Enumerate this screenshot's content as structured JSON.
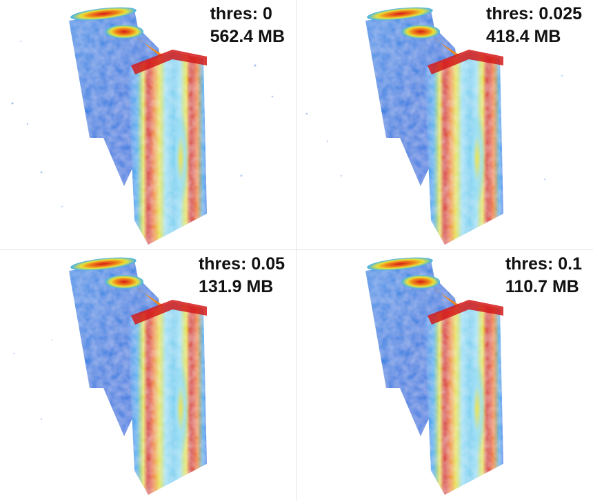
{
  "panels": [
    {
      "threshold": "thres: 0",
      "size": "562.4 MB"
    },
    {
      "threshold": "thres: 0.025",
      "size": "418.4 MB"
    },
    {
      "threshold": "thres: 0.05",
      "size": "131.9 MB"
    },
    {
      "threshold": "thres: 0.1",
      "size": "110.7 MB"
    }
  ],
  "colormap": {
    "low": "#1e6fe0",
    "mid_low": "#3fa6f5",
    "mid": "#9fe0f5",
    "high_mid": "#f5e23a",
    "high": "#f08a1a",
    "peak": "#d41a1a"
  }
}
